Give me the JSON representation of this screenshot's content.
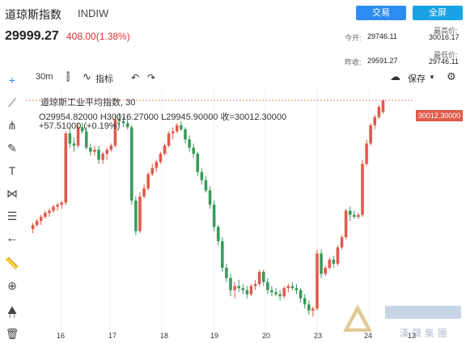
{
  "header": {
    "title": "道琼斯指数",
    "code": "INDIW",
    "trade_label": "交易",
    "full_label": "全屏",
    "price": "29999.27",
    "change": "408.00(1.38%)",
    "stats": {
      "open_label": "今开:",
      "open_value": "29746.11",
      "high_label": "最高价:",
      "high_value": "30016.17",
      "prev_label": "昨收:",
      "prev_value": "29591.27",
      "low_label": "最低价:",
      "low_value": "29746.11"
    }
  },
  "toolbar": {
    "interval": "30m",
    "indicators": "指标",
    "save": "保存"
  },
  "legend": {
    "name": "道琼斯工业平均指数, 30",
    "ohlc": "O29954.82000  H30016.27000  L29945.90000  收=30012.30000",
    "change": "+57.51000 (+0.19%)",
    "price_tag": "30012.30000"
  },
  "colors": {
    "up": "#e05a4a",
    "down": "#3a9a5a",
    "accent": "#2d8cf0"
  },
  "chart_data": {
    "type": "candlestick",
    "x_ticks": [
      "16",
      "17",
      "18",
      "19",
      "20",
      "23",
      "24",
      "13"
    ],
    "ylim": [
      28900,
      30060
    ],
    "candles": [
      [
        29380,
        29410,
        29360,
        29400
      ],
      [
        29400,
        29430,
        29390,
        29420
      ],
      [
        29420,
        29450,
        29400,
        29440
      ],
      [
        29440,
        29470,
        29430,
        29460
      ],
      [
        29460,
        29480,
        29440,
        29470
      ],
      [
        29470,
        29500,
        29460,
        29490
      ],
      [
        29490,
        29510,
        29470,
        29500
      ],
      [
        29500,
        29520,
        29480,
        29510
      ],
      [
        29510,
        29860,
        29500,
        29850
      ],
      [
        29850,
        29880,
        29780,
        29800
      ],
      [
        29800,
        29830,
        29760,
        29790
      ],
      [
        29790,
        29900,
        29780,
        29880
      ],
      [
        29880,
        29900,
        29850,
        29860
      ],
      [
        29860,
        29880,
        29770,
        29780
      ],
      [
        29780,
        29800,
        29740,
        29760
      ],
      [
        29760,
        29790,
        29740,
        29770
      ],
      [
        29770,
        29790,
        29700,
        29720
      ],
      [
        29720,
        29760,
        29700,
        29750
      ],
      [
        29750,
        29780,
        29720,
        29770
      ],
      [
        29770,
        29800,
        29760,
        29790
      ],
      [
        29790,
        29940,
        29780,
        29920
      ],
      [
        29920,
        29950,
        29890,
        29910
      ],
      [
        29910,
        29930,
        29880,
        29900
      ],
      [
        29900,
        29920,
        29870,
        29880
      ],
      [
        29880,
        29890,
        29500,
        29520
      ],
      [
        29520,
        29540,
        29350,
        29370
      ],
      [
        29370,
        29560,
        29360,
        29540
      ],
      [
        29540,
        29600,
        29530,
        29580
      ],
      [
        29580,
        29660,
        29570,
        29650
      ],
      [
        29650,
        29700,
        29640,
        29680
      ],
      [
        29680,
        29720,
        29660,
        29710
      ],
      [
        29710,
        29760,
        29700,
        29750
      ],
      [
        29750,
        29800,
        29740,
        29790
      ],
      [
        29790,
        29860,
        29780,
        29850
      ],
      [
        29850,
        29880,
        29820,
        29860
      ],
      [
        29860,
        29900,
        29850,
        29890
      ],
      [
        29890,
        29910,
        29860,
        29870
      ],
      [
        29870,
        29880,
        29800,
        29820
      ],
      [
        29820,
        29840,
        29760,
        29780
      ],
      [
        29780,
        29800,
        29730,
        29750
      ],
      [
        29750,
        29760,
        29640,
        29660
      ],
      [
        29660,
        29680,
        29600,
        29620
      ],
      [
        29620,
        29640,
        29560,
        29570
      ],
      [
        29570,
        29590,
        29480,
        29500
      ],
      [
        29500,
        29520,
        29370,
        29390
      ],
      [
        29390,
        29400,
        29300,
        29320
      ],
      [
        29320,
        29340,
        29170,
        29190
      ],
      [
        29190,
        29210,
        29120,
        29140
      ],
      [
        29140,
        29160,
        29050,
        29080
      ],
      [
        29080,
        29120,
        29040,
        29100
      ],
      [
        29100,
        29130,
        29070,
        29090
      ],
      [
        29090,
        29110,
        29060,
        29080
      ],
      [
        29080,
        29100,
        29040,
        29060
      ],
      [
        29060,
        29110,
        29050,
        29100
      ],
      [
        29100,
        29130,
        29080,
        29110
      ],
      [
        29110,
        29180,
        29100,
        29170
      ],
      [
        29170,
        29180,
        29100,
        29120
      ],
      [
        29120,
        29140,
        29060,
        29080
      ],
      [
        29080,
        29100,
        29050,
        29070
      ],
      [
        29070,
        29090,
        29050,
        29060
      ],
      [
        29060,
        29080,
        29030,
        29050
      ],
      [
        29050,
        29100,
        29040,
        29090
      ],
      [
        29090,
        29110,
        29070,
        29100
      ],
      [
        29100,
        29120,
        29080,
        29090
      ],
      [
        29090,
        29110,
        29060,
        29080
      ],
      [
        29080,
        29090,
        29020,
        29040
      ],
      [
        29040,
        29060,
        28990,
        29010
      ],
      [
        29010,
        29030,
        28960,
        28980
      ],
      [
        28980,
        29000,
        28950,
        28990
      ],
      [
        28990,
        29280,
        28980,
        29260
      ],
      [
        29260,
        29280,
        29140,
        29160
      ],
      [
        29160,
        29200,
        29150,
        29190
      ],
      [
        29190,
        29240,
        29180,
        29230
      ],
      [
        29230,
        29250,
        29190,
        29210
      ],
      [
        29210,
        29300,
        29200,
        29290
      ],
      [
        29290,
        29350,
        29280,
        29340
      ],
      [
        29340,
        29480,
        29330,
        29470
      ],
      [
        29470,
        29490,
        29420,
        29450
      ],
      [
        29450,
        29470,
        29430,
        29440
      ],
      [
        29440,
        29460,
        29430,
        29450
      ],
      [
        29450,
        29720,
        29440,
        29700
      ],
      [
        29700,
        29820,
        29690,
        29800
      ],
      [
        29800,
        29900,
        29790,
        29890
      ],
      [
        29890,
        29940,
        29870,
        29930
      ],
      [
        29930,
        29990,
        29920,
        29980
      ],
      [
        29954.82,
        30016.27,
        29945.9,
        30012.3
      ]
    ]
  },
  "watermark": "漢 聲 集 團"
}
